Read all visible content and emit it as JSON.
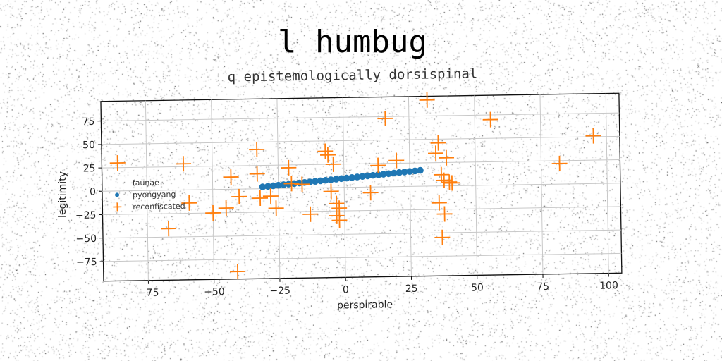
{
  "chart_data": {
    "type": "scatter",
    "title": "l humbug",
    "subtitle": "q epistemologically dorsispinal",
    "xlabel": "perspirable",
    "ylabel": "legitimity",
    "xlim": [
      -92,
      105
    ],
    "ylim": [
      -96,
      96
    ],
    "xticks": [
      -75,
      -50,
      -25,
      0,
      25,
      50,
      75,
      100
    ],
    "yticks": [
      75,
      50,
      25,
      0,
      -25,
      -50,
      -75
    ],
    "xtick_labels": [
      "−75",
      "−50",
      "−25",
      "0",
      "25",
      "50",
      "75",
      "100"
    ],
    "ytick_labels": [
      "75",
      "50",
      "25",
      "0",
      "−25",
      "−50",
      "−75"
    ],
    "grid": true,
    "legend_position": "center-left",
    "series": [
      {
        "name": "faunae",
        "marker": "none",
        "color": "#2ca02c",
        "x": [],
        "y": []
      },
      {
        "name": "pyongyang",
        "marker": "circle",
        "color": "#1f77b4",
        "x": [
          -31,
          -29,
          -27,
          -25,
          -23,
          -21,
          -19,
          -17,
          -15,
          -13,
          -11,
          -9,
          -7,
          -5,
          -3,
          -1,
          1,
          3,
          5,
          7,
          9,
          11,
          13,
          15,
          17,
          19,
          21,
          23,
          25,
          27,
          29
        ],
        "y": [
          2,
          2.5,
          3,
          3.5,
          4,
          4.5,
          5,
          5.5,
          6,
          6.5,
          7,
          7.5,
          8,
          8.5,
          9,
          9.5,
          10,
          10.5,
          11,
          11.5,
          12,
          12.5,
          13,
          13.5,
          14,
          14.5,
          15,
          15.5,
          16,
          16.5,
          17
        ]
      },
      {
        "name": "reconfiscated",
        "marker": "plus",
        "color": "#ff7f0e",
        "x": [
          -86,
          -61,
          -59,
          -67,
          -50,
          -45,
          -43,
          -40,
          -41,
          -33,
          -33,
          -32,
          -28,
          -26,
          -21,
          -20,
          -16,
          -13,
          -7,
          -6,
          -5,
          -4,
          -3,
          -3,
          -2,
          -2,
          10,
          13,
          16,
          20,
          32,
          35,
          36,
          36,
          37,
          37,
          38,
          38,
          39,
          40,
          41,
          56,
          82,
          95
        ],
        "y": [
          30,
          28,
          -14,
          -41,
          -25,
          -20,
          13,
          -8,
          -88,
          42,
          16,
          -10,
          -8,
          -21,
          22,
          5,
          4,
          -28,
          39,
          35,
          -4,
          25,
          -17,
          -30,
          -22,
          -35,
          -6,
          23,
          73,
          28,
          92,
          35,
          46,
          -18,
          -55,
          12,
          6,
          -30,
          30,
          4,
          3,
          70,
          22,
          51
        ]
      }
    ]
  }
}
